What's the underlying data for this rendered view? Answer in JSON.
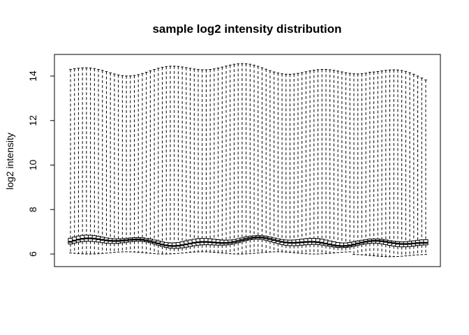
{
  "chart_data": {
    "type": "boxplot",
    "title": "sample log2 intensity distribution",
    "xlabel": "",
    "ylabel": "log2 intensity",
    "ylim": [
      5.5,
      15.0
    ],
    "yticks": [
      6,
      8,
      10,
      12,
      14
    ],
    "ytick_labels": [
      "6",
      "8",
      "10",
      "12",
      "14"
    ],
    "box_count": 90,
    "whisker_style": "dashed",
    "grid": false,
    "series_trend": {
      "medians_range": [
        6.3,
        6.8
      ],
      "upper_whisker_range": [
        13.6,
        14.6
      ],
      "lower_whisker_range": [
        5.9,
        6.2
      ]
    }
  }
}
